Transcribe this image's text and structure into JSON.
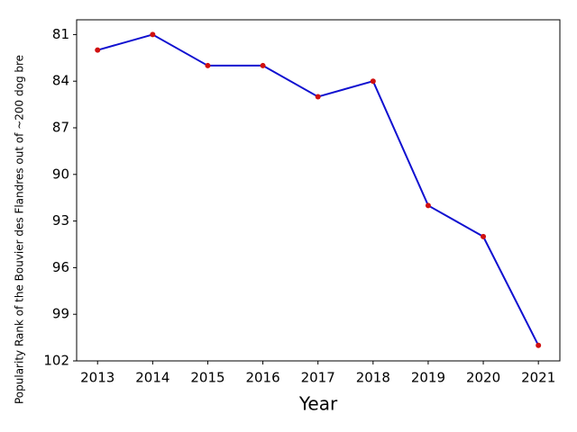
{
  "chart_data": {
    "type": "line",
    "x_label": "Year",
    "y_label": "Popularity Rank of the Bouvier des Flandres out of ~200 dog bre",
    "x": [
      2013,
      2014,
      2015,
      2016,
      2017,
      2018,
      2019,
      2020,
      2021
    ],
    "series": [
      {
        "color": "#1010d0",
        "marker_color": "#d01010",
        "values": [
          82,
          81,
          83,
          83,
          85,
          84,
          92,
          94,
          101
        ]
      }
    ],
    "xlim": [
      2012.62,
      2021.39
    ],
    "xticks": [
      2013,
      2014,
      2015,
      2016,
      2017,
      2018,
      2019,
      2020,
      2021
    ],
    "ylim": [
      102,
      80.05
    ],
    "yticks": [
      81,
      84,
      87,
      90,
      93,
      96,
      99,
      102
    ],
    "y_inverted": true
  }
}
